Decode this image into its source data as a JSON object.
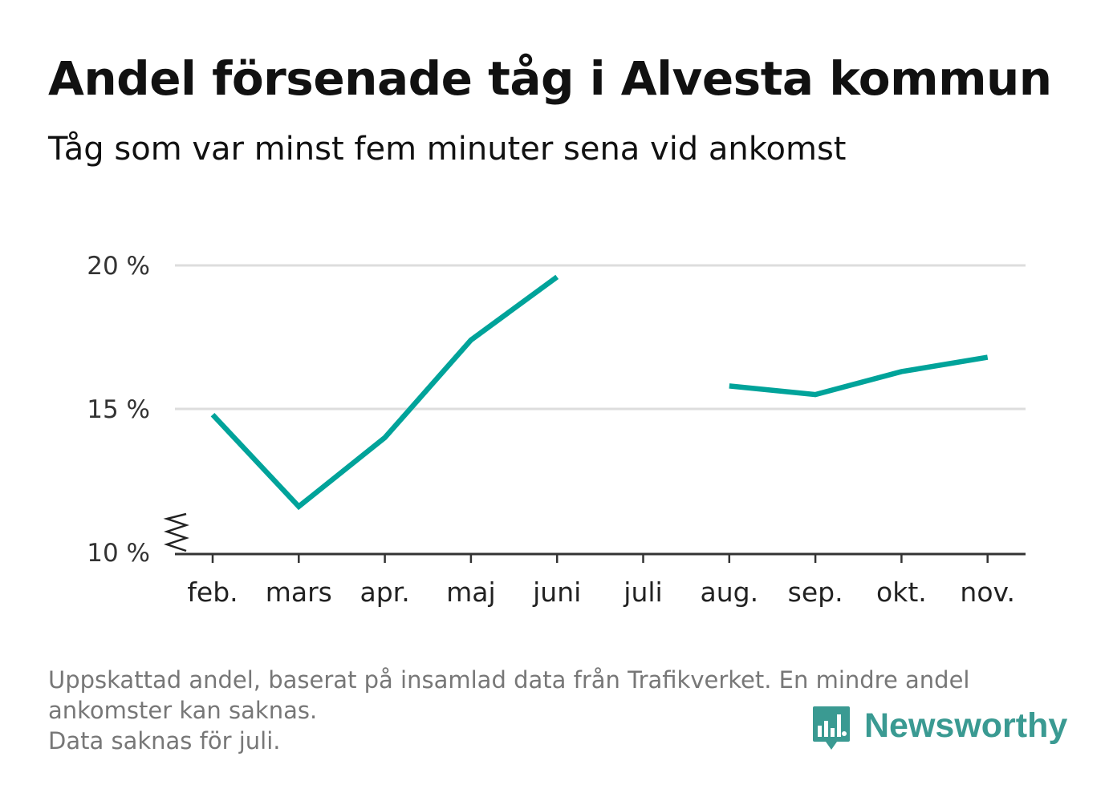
{
  "title": "Andel försenade tåg i Alvesta kommun",
  "subtitle": "Tåg som var minst fem minuter sena vid ankomst",
  "footnote": {
    "line1": "Uppskattad andel, baserat på insamlad data från Trafikverket. En mindre andel",
    "line2": "ankomster kan saknas.",
    "line3": "Data saknas för juli."
  },
  "brand": {
    "name": "Newsworthy",
    "color": "#3a9a92",
    "icon": "bar-chart-speech-bubble-icon"
  },
  "colors": {
    "line": "#00a39a",
    "grid": "#dddddd",
    "axis": "#333333"
  },
  "chart_data": {
    "type": "line",
    "categories": [
      "feb.",
      "mars",
      "apr.",
      "maj",
      "juni",
      "juli",
      "aug.",
      "sep.",
      "okt.",
      "nov."
    ],
    "series": [
      {
        "values": [
          14.8,
          11.6,
          14.0,
          17.4,
          19.6,
          null,
          15.8,
          15.5,
          16.3,
          16.8
        ]
      }
    ],
    "y_ticks": [
      {
        "value": 10,
        "label": "10 %"
      },
      {
        "value": 15,
        "label": "15 %"
      },
      {
        "value": 20,
        "label": "20 %"
      }
    ],
    "ylim": [
      10,
      20
    ],
    "y_axis_break": true,
    "grid": true,
    "legend": false
  }
}
